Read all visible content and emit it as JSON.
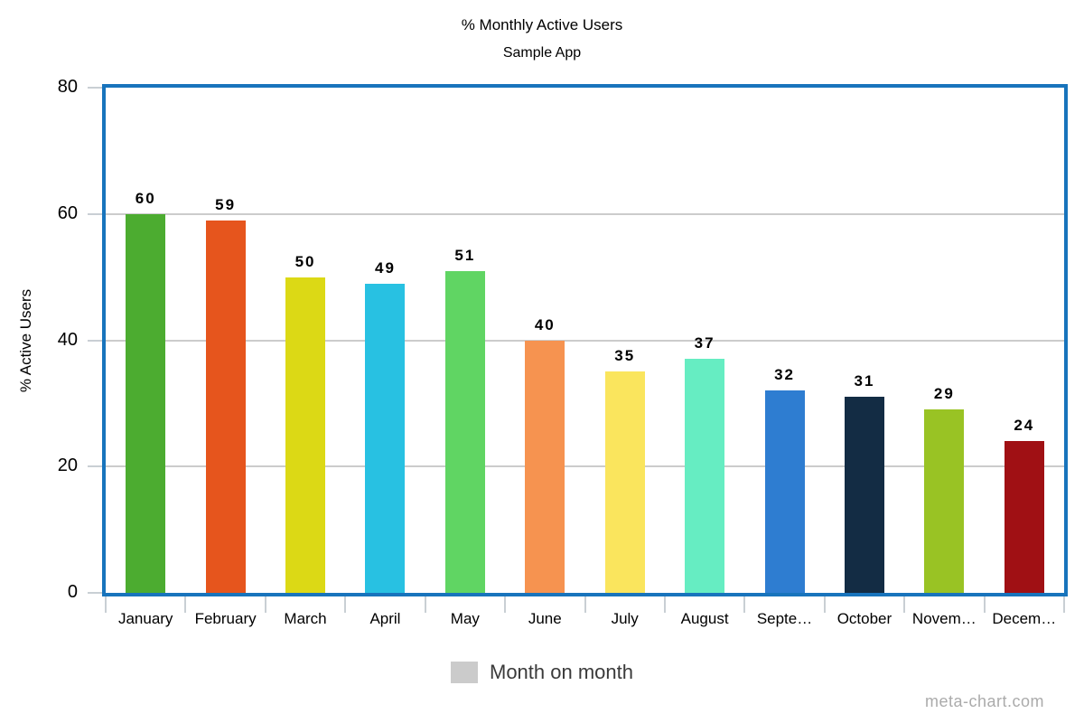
{
  "header": {
    "title": "% Monthly Active Users",
    "subtitle": "Sample App"
  },
  "chart_data": {
    "type": "bar",
    "title": "% Monthly Active Users",
    "subtitle": "Sample App",
    "categories": [
      "January",
      "February",
      "March",
      "April",
      "May",
      "June",
      "July",
      "August",
      "September",
      "October",
      "November",
      "December"
    ],
    "category_labels_displayed": [
      "January",
      "February",
      "March",
      "April",
      "May",
      "June",
      "July",
      "August",
      "Septe…",
      "October",
      "Novem…",
      "Decem…"
    ],
    "values": [
      60,
      59,
      50,
      49,
      51,
      40,
      35,
      37,
      32,
      31,
      29,
      24
    ],
    "bar_colors": [
      "#4cac30",
      "#e6551d",
      "#dcd915",
      "#28c1e2",
      "#60d563",
      "#f69350",
      "#fae55d",
      "#66edc2",
      "#2e7dd1",
      "#132c44",
      "#99c324",
      "#a01014"
    ],
    "xlabel": "",
    "ylabel": "% Active Users",
    "ylim": [
      0,
      80
    ],
    "yticks": [
      80,
      60,
      40,
      20,
      0
    ],
    "grid": true,
    "frame_color": "#1874bc",
    "gridline_color": "#cccccc",
    "legend": {
      "label": "Month on month",
      "swatch_color": "#cbcbcb",
      "position": "bottom"
    }
  },
  "watermark": "meta-chart.com"
}
